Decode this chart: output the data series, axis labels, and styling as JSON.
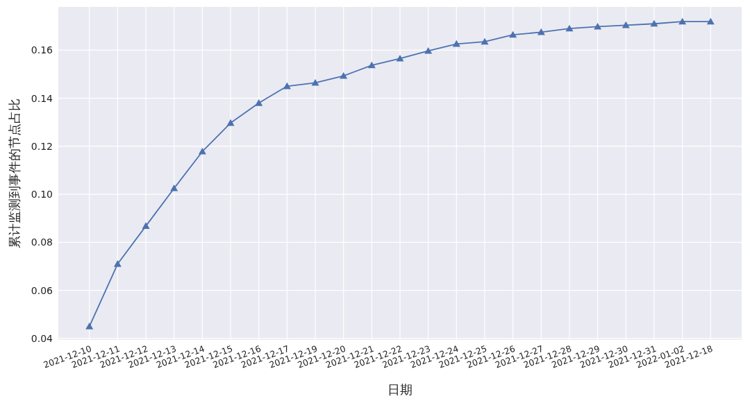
{
  "chart_data": {
    "type": "line",
    "xlabel": "日期",
    "ylabel": "累计监测到事件的节点占比",
    "categories": [
      "2021-12-10",
      "2021-12-11",
      "2021-12-12",
      "2021-12-13",
      "2021-12-14",
      "2021-12-15",
      "2021-12-16",
      "2021-12-17",
      "2021-12-19",
      "2021-12-20",
      "2021-12-21",
      "2021-12-22",
      "2021-12-23",
      "2021-12-24",
      "2021-12-25",
      "2021-12-26",
      "2021-12-27",
      "2021-12-28",
      "2021-12-29",
      "2021-12-30",
      "2021-12-31",
      "2022-01-02",
      "2021-12-18"
    ],
    "series": [
      {
        "color": "#4c72b0",
        "values": [
          0.045,
          0.071,
          0.0868,
          0.1025,
          0.1178,
          0.1297,
          0.138,
          0.145,
          0.1464,
          0.1493,
          0.1537,
          0.1565,
          0.1597,
          0.1626,
          0.1635,
          0.1664,
          0.1675,
          0.169,
          0.1698,
          0.1704,
          0.171,
          0.1719,
          0.1719
        ]
      }
    ],
    "ylim": [
      0.0394,
      0.178
    ],
    "yticks": [
      {
        "value": 0.04,
        "label": "0.04"
      },
      {
        "value": 0.06,
        "label": "0.06"
      },
      {
        "value": 0.08,
        "label": "0.08"
      },
      {
        "value": 0.1,
        "label": "0.10"
      },
      {
        "value": 0.12,
        "label": "0.12"
      },
      {
        "value": 0.14,
        "label": "0.14"
      },
      {
        "value": 0.16,
        "label": "0.16"
      }
    ],
    "grid": true,
    "marker": "triangle",
    "line_style": "solid"
  }
}
